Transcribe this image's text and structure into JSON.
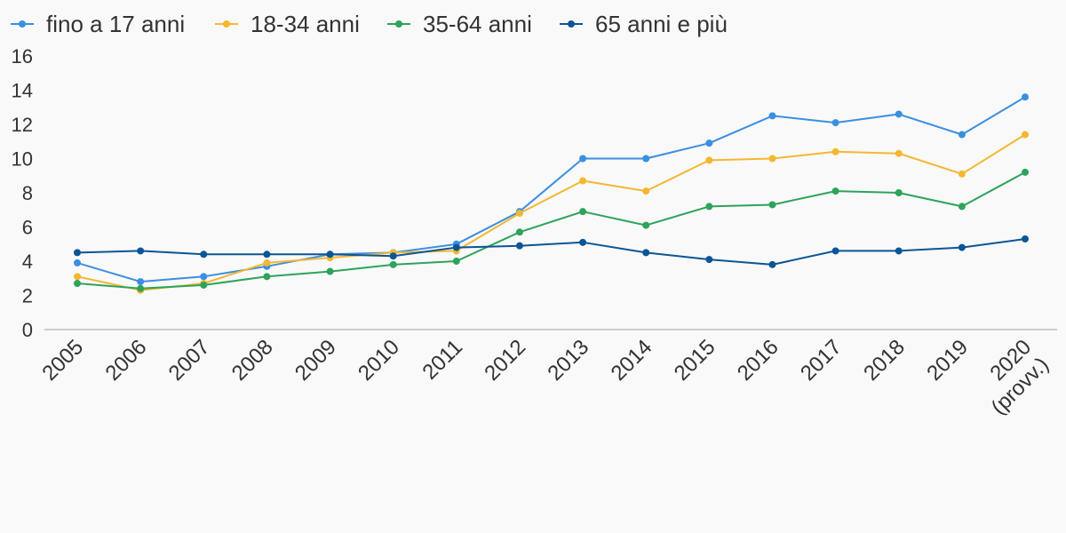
{
  "chart_data": {
    "type": "line",
    "title": "",
    "xlabel": "",
    "ylabel": "",
    "categories": [
      "2005",
      "2006",
      "2007",
      "2008",
      "2009",
      "2010",
      "2011",
      "2012",
      "2013",
      "2014",
      "2015",
      "2016",
      "2017",
      "2018",
      "2019",
      "2020 (provv.)"
    ],
    "ylim": [
      0,
      16
    ],
    "yticks": [
      0,
      2,
      4,
      6,
      8,
      10,
      12,
      14,
      16
    ],
    "grid": false,
    "legend_position": "top-left",
    "series": [
      {
        "name": "fino a 17 anni",
        "color": "#3b8fe0",
        "values": [
          3.9,
          2.8,
          3.1,
          3.7,
          4.4,
          4.5,
          5.0,
          6.9,
          10.0,
          10.0,
          10.9,
          12.5,
          12.1,
          12.6,
          11.4,
          13.6
        ]
      },
      {
        "name": "18-34 anni",
        "color": "#f5b730",
        "values": [
          3.1,
          2.3,
          2.7,
          3.9,
          4.2,
          4.5,
          4.6,
          6.8,
          8.7,
          8.1,
          9.9,
          10.0,
          10.4,
          10.3,
          9.1,
          11.4
        ]
      },
      {
        "name": "35-64 anni",
        "color": "#2ea35b",
        "values": [
          2.7,
          2.4,
          2.6,
          3.1,
          3.4,
          3.8,
          4.0,
          5.7,
          6.9,
          6.1,
          7.2,
          7.3,
          8.1,
          8.0,
          7.2,
          9.2
        ]
      },
      {
        "name": "65 anni e più",
        "color": "#0b5596",
        "values": [
          4.5,
          4.6,
          4.4,
          4.4,
          4.4,
          4.3,
          4.8,
          4.9,
          5.1,
          4.5,
          4.1,
          3.8,
          4.6,
          4.6,
          4.8,
          5.3
        ]
      }
    ]
  }
}
